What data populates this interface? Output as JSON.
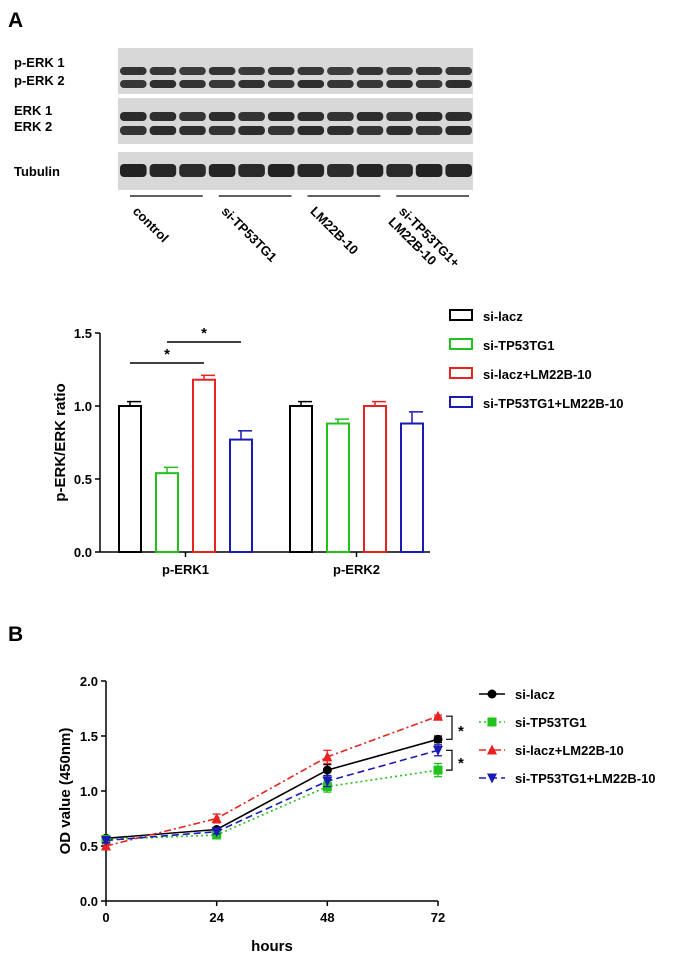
{
  "panels": {
    "a": "A",
    "b": "B"
  },
  "blot": {
    "rows": [
      {
        "labels": [
          "p-ERK 1",
          "p-ERK 2"
        ]
      },
      {
        "labels": [
          "ERK 1",
          "ERK 2"
        ]
      },
      {
        "labels": [
          "Tubulin"
        ]
      }
    ],
    "groups": [
      {
        "lines": [
          "control"
        ]
      },
      {
        "lines": [
          "si-TP53TG1"
        ]
      },
      {
        "lines": [
          "LM22B-10"
        ]
      },
      {
        "lines": [
          "si-TP53TG1+",
          "LM22B-10"
        ]
      }
    ],
    "lanes_per_group": 3
  },
  "chart_data": [
    {
      "type": "bar",
      "categories": [
        "p-ERK1",
        "p-ERK2"
      ],
      "series": [
        {
          "name": "si-lacz",
          "values": [
            1.0,
            1.0
          ],
          "errors": [
            0.03,
            0.03
          ],
          "color": "#000000"
        },
        {
          "name": "si-TP53TG1",
          "values": [
            0.54,
            0.88
          ],
          "errors": [
            0.04,
            0.03
          ],
          "color": "#22c21c"
        },
        {
          "name": "si-lacz+LM22B-10",
          "values": [
            1.18,
            1.0
          ],
          "errors": [
            0.03,
            0.03
          ],
          "color": "#e8231f"
        },
        {
          "name": "si-TP53TG1+LM22B-10",
          "values": [
            0.77,
            0.88
          ],
          "errors": [
            0.06,
            0.08
          ],
          "color": "#1a1ab4"
        }
      ],
      "ylabel": "p-ERK/ERK ratio",
      "xlabel": "",
      "ylim": [
        0,
        1.5
      ],
      "yticks": [
        "0.0",
        "0.5",
        "1.0",
        "1.5"
      ],
      "significance": [
        {
          "label": "*",
          "category": "p-ERK1",
          "from_series": 0,
          "to_series": 2
        },
        {
          "label": "*",
          "category": "p-ERK1",
          "from_series": 1,
          "to_series": 3
        }
      ],
      "legend_position": "right"
    },
    {
      "type": "line",
      "x": [
        0,
        24,
        48,
        72
      ],
      "series": [
        {
          "name": "si-lacz",
          "values": [
            0.57,
            0.65,
            1.19,
            1.47
          ],
          "errors": [
            0.02,
            0.02,
            0.05,
            0.03
          ],
          "color": "#000000",
          "marker": "circle",
          "dash": "solid"
        },
        {
          "name": "si-TP53TG1",
          "values": [
            0.56,
            0.6,
            1.04,
            1.19
          ],
          "errors": [
            0.02,
            0.02,
            0.05,
            0.06
          ],
          "color": "#22c21c",
          "marker": "square",
          "dash": "dotted"
        },
        {
          "name": "si-lacz+LM22B-10",
          "values": [
            0.5,
            0.75,
            1.31,
            1.68
          ],
          "errors": [
            0.02,
            0.04,
            0.06,
            0.01
          ],
          "color": "#e8231f",
          "marker": "triangle-up",
          "dash": "dashdot"
        },
        {
          "name": "si-TP53TG1+LM22B-10",
          "values": [
            0.55,
            0.63,
            1.09,
            1.37
          ],
          "errors": [
            0.02,
            0.02,
            0.05,
            0.05
          ],
          "color": "#1a1ab4",
          "marker": "triangle-down",
          "dash": "dashed"
        }
      ],
      "xlabel": "hours",
      "ylabel": "OD value (450nm)",
      "xlim": [
        0,
        72
      ],
      "ylim": [
        0,
        2.0
      ],
      "xticks": [
        "0",
        "24",
        "48",
        "72"
      ],
      "yticks": [
        "0.0",
        "0.5",
        "1.0",
        "1.5",
        "2.0"
      ],
      "significance": [
        {
          "label": "*",
          "pair": [
            "si-lacz+LM22B-10",
            "si-lacz"
          ]
        },
        {
          "label": "*",
          "pair": [
            "si-TP53TG1+LM22B-10",
            "si-TP53TG1"
          ]
        }
      ],
      "legend_position": "right"
    }
  ]
}
